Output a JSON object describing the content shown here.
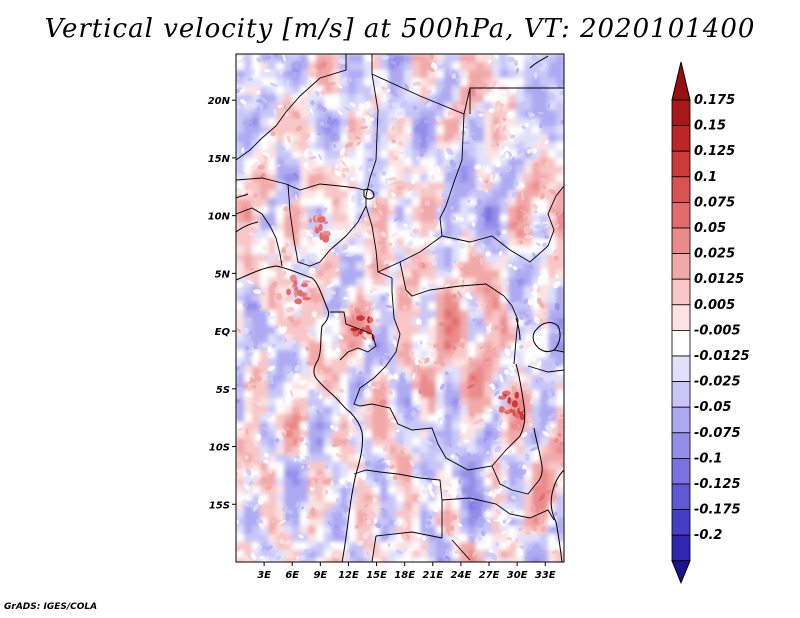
{
  "chart_data": {
    "type": "heatmap",
    "title": "Vertical velocity [m/s] at 500hPa, VT: 2020101400",
    "variable": "Vertical velocity",
    "units": "m/s",
    "level": "500hPa",
    "valid_time": "2020101400",
    "lon_range": [
      0,
      35
    ],
    "lat_range": [
      -20,
      24
    ],
    "x_ticks": [
      {
        "value": 3,
        "label": "3E"
      },
      {
        "value": 6,
        "label": "6E"
      },
      {
        "value": 9,
        "label": "9E"
      },
      {
        "value": 12,
        "label": "12E"
      },
      {
        "value": 15,
        "label": "15E"
      },
      {
        "value": 18,
        "label": "18E"
      },
      {
        "value": 21,
        "label": "21E"
      },
      {
        "value": 24,
        "label": "24E"
      },
      {
        "value": 27,
        "label": "27E"
      },
      {
        "value": 30,
        "label": "30E"
      },
      {
        "value": 33,
        "label": "33E"
      }
    ],
    "y_ticks": [
      {
        "value": 20,
        "label": "20N"
      },
      {
        "value": 15,
        "label": "15N"
      },
      {
        "value": 10,
        "label": "10N"
      },
      {
        "value": 5,
        "label": "5N"
      },
      {
        "value": 0,
        "label": "EQ"
      },
      {
        "value": -5,
        "label": "5S"
      },
      {
        "value": -10,
        "label": "10S"
      },
      {
        "value": -15,
        "label": "15S"
      }
    ],
    "colorbar": {
      "levels": [
        {
          "label": "0.175",
          "color": "#a81818"
        },
        {
          "label": "0.15",
          "color": "#bc2626"
        },
        {
          "label": "0.125",
          "color": "#cc3a3a"
        },
        {
          "label": "0.1",
          "color": "#d85252"
        },
        {
          "label": "0.075",
          "color": "#e26c6c"
        },
        {
          "label": "0.05",
          "color": "#ea8a8a"
        },
        {
          "label": "0.025",
          "color": "#f2a8a8"
        },
        {
          "label": "0.0125",
          "color": "#f8c6c6"
        },
        {
          "label": "0.005",
          "color": "#fce2e2"
        },
        {
          "label": "-0.005",
          "color": "#ffffff"
        },
        {
          "label": "-0.0125",
          "color": "#e0e0fc"
        },
        {
          "label": "-0.025",
          "color": "#c8c6f8"
        },
        {
          "label": "-0.05",
          "color": "#aeaaf2"
        },
        {
          "label": "-0.075",
          "color": "#948eea"
        },
        {
          "label": "-0.1",
          "color": "#7a72e0"
        },
        {
          "label": "-0.125",
          "color": "#6058d2"
        },
        {
          "label": "-0.175",
          "color": "#463ec2"
        },
        {
          "label": "-0.2",
          "color": "#2e26b0"
        }
      ],
      "top_arrow_color": "#961010",
      "bottom_arrow_color": "#1c148e"
    },
    "notable_features": [
      {
        "name": "strong ascent Gabon/Congo",
        "lon": 13.5,
        "lat": 0.5,
        "value": 0.175
      },
      {
        "name": "strong ascent Lake Tanganyika",
        "lon": 29.5,
        "lat": -6.5,
        "value": 0.15
      },
      {
        "name": "ascent Nigeria/Cameroon",
        "lon": 8.5,
        "lat": 9.0,
        "value": 0.1
      },
      {
        "name": "ascent Gulf of Guinea",
        "lon": 6.5,
        "lat": 3.5,
        "value": 0.1
      }
    ]
  },
  "credit": "GrADS: IGES/COLA"
}
